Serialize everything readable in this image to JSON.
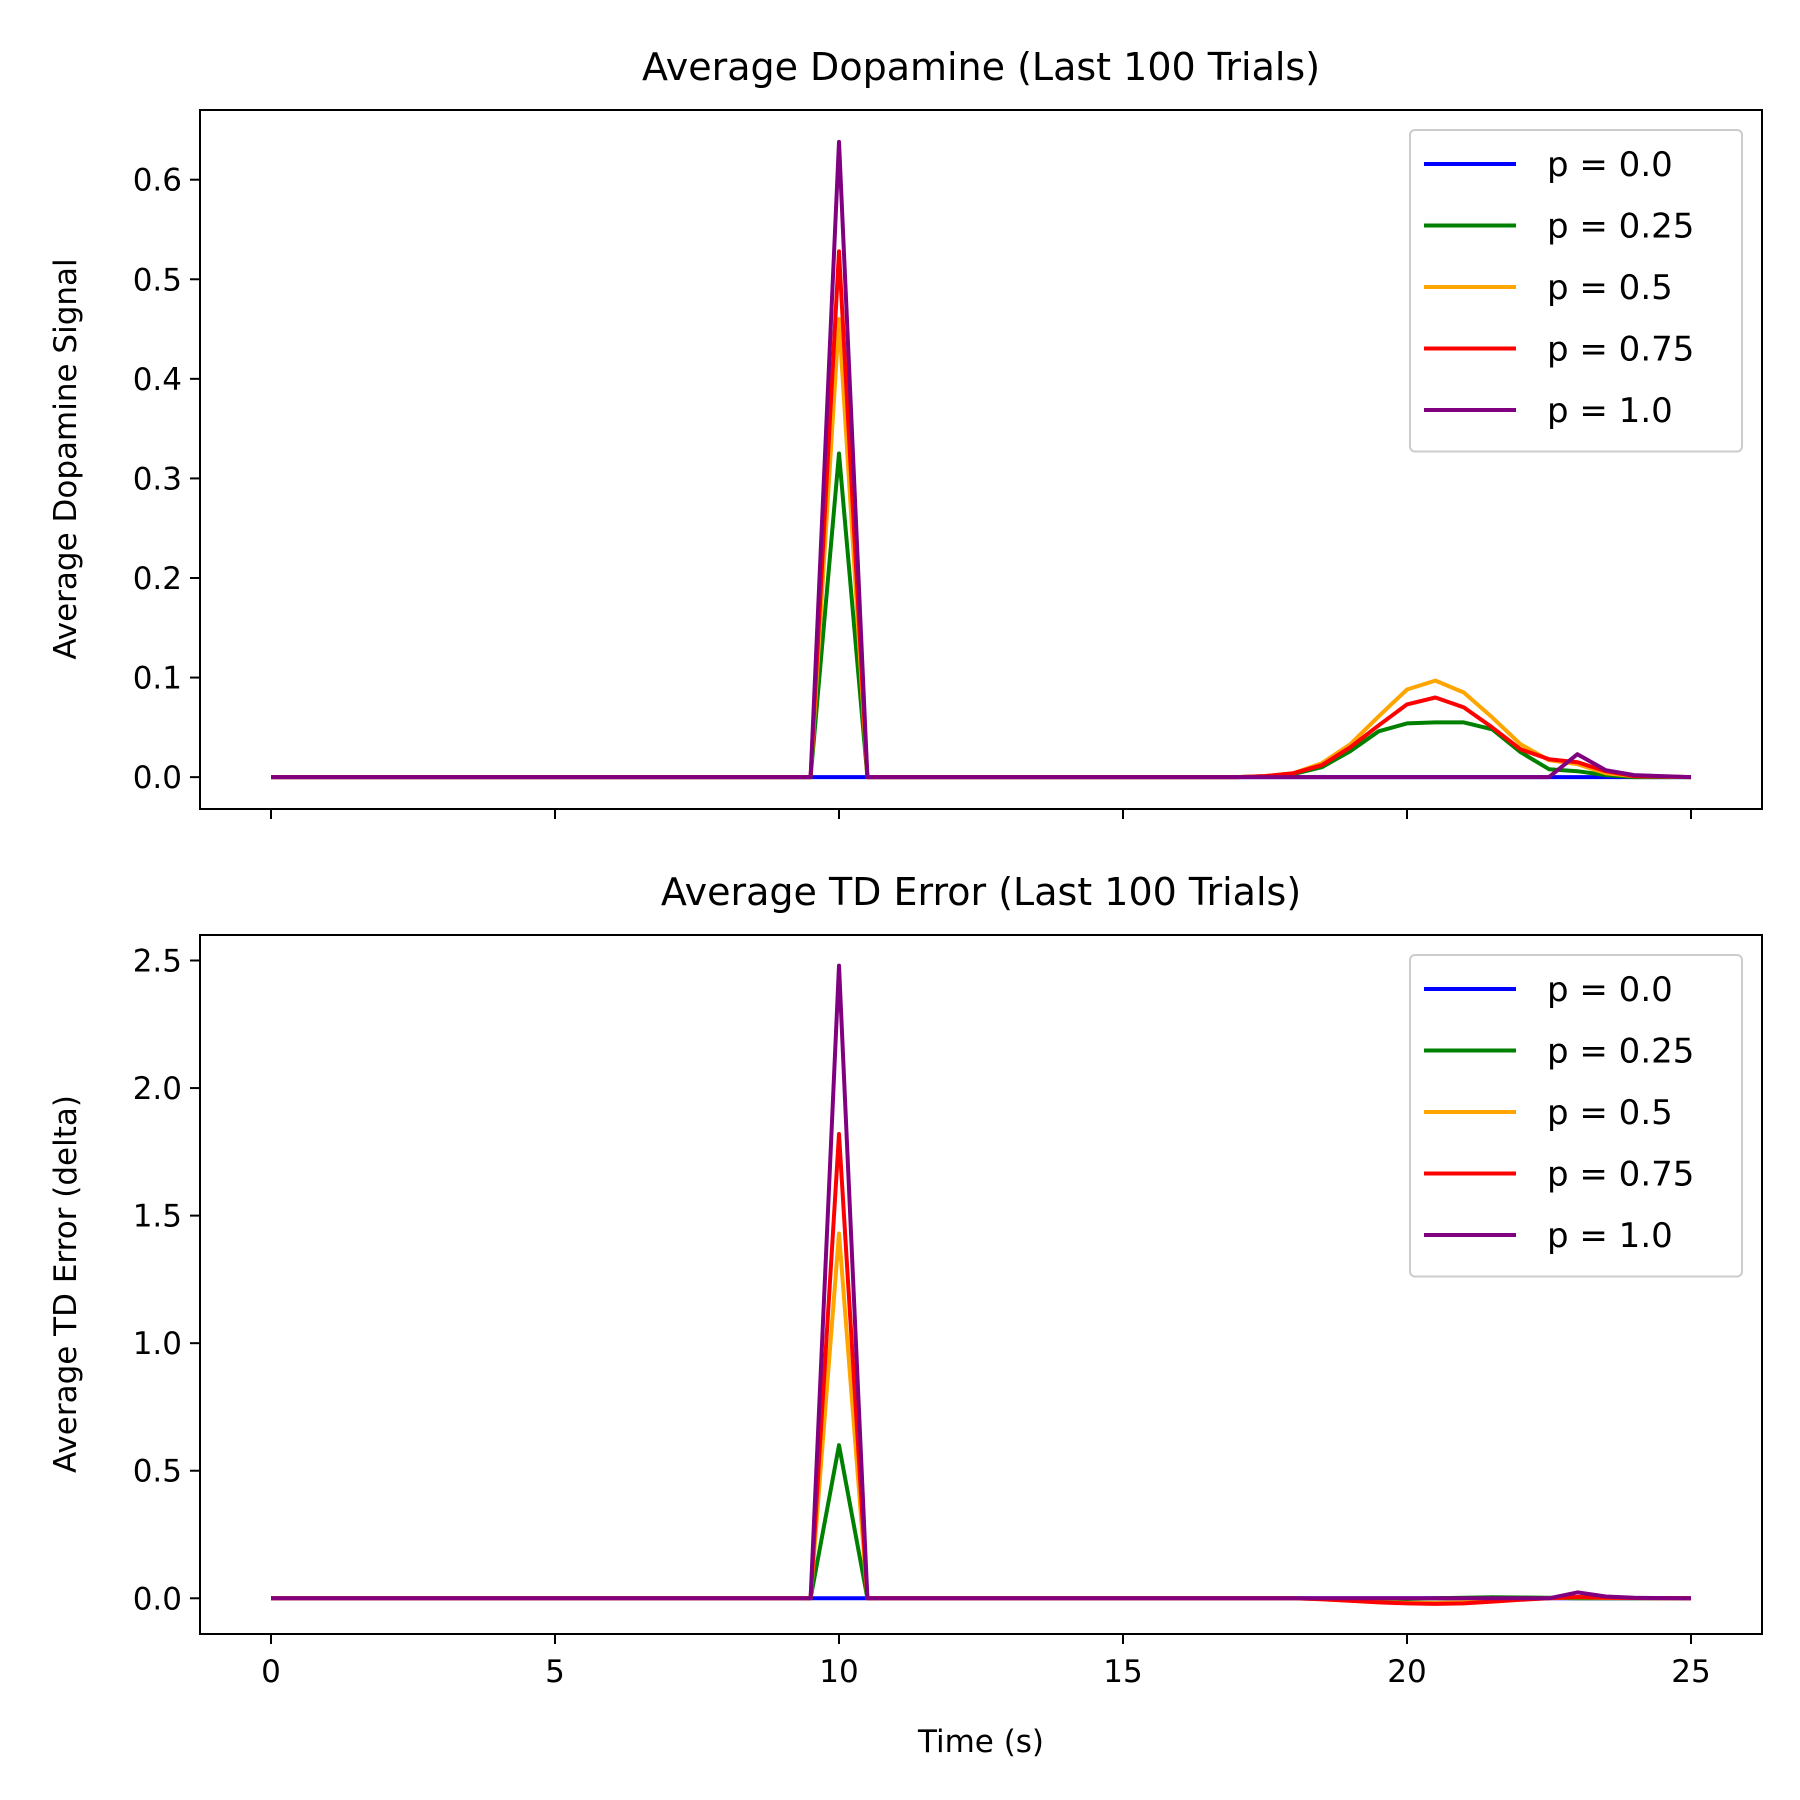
{
  "chart_data": [
    {
      "type": "line",
      "title": "Average Dopamine (Last 100 Trials)",
      "xlabel": "",
      "ylabel": "Average Dopamine Signal",
      "xlim": [
        -1.25,
        26.25
      ],
      "ylim": [
        -0.032,
        0.67
      ],
      "xticks": [
        0,
        5,
        10,
        15,
        20,
        25
      ],
      "xtick_labels_visible": false,
      "yticks": [
        0.0,
        0.1,
        0.2,
        0.3,
        0.4,
        0.5,
        0.6
      ],
      "ytick_labels": [
        "0.0",
        "0.1",
        "0.2",
        "0.3",
        "0.4",
        "0.5",
        "0.6"
      ],
      "grid": false,
      "legend": "top-right",
      "series": [
        {
          "name": "p = 0.0",
          "color": "#0000ff",
          "points": [
            [
              0,
              0
            ],
            [
              9.5,
              0
            ],
            [
              10,
              0
            ],
            [
              10.5,
              0
            ],
            [
              22.5,
              0
            ],
            [
              23,
              0
            ],
            [
              25,
              0
            ]
          ]
        },
        {
          "name": "p = 0.25",
          "color": "#008000",
          "points": [
            [
              0,
              0
            ],
            [
              9.5,
              0
            ],
            [
              10,
              0.325
            ],
            [
              10.5,
              0
            ],
            [
              17,
              0
            ],
            [
              17.5,
              0.001
            ],
            [
              18,
              0.003
            ],
            [
              18.5,
              0.01
            ],
            [
              19,
              0.026
            ],
            [
              19.5,
              0.046
            ],
            [
              20,
              0.054
            ],
            [
              20.5,
              0.055
            ],
            [
              21,
              0.055
            ],
            [
              21.5,
              0.048
            ],
            [
              22,
              0.025
            ],
            [
              22.5,
              0.008
            ],
            [
              23,
              0.006
            ],
            [
              23.5,
              0.002
            ],
            [
              24,
              0
            ],
            [
              25,
              0
            ]
          ]
        },
        {
          "name": "p = 0.5",
          "color": "#ffa500",
          "points": [
            [
              0,
              0
            ],
            [
              9.5,
              0
            ],
            [
              10,
              0.46
            ],
            [
              10.5,
              0
            ],
            [
              17,
              0
            ],
            [
              17.5,
              0.001
            ],
            [
              18,
              0.004
            ],
            [
              18.5,
              0.014
            ],
            [
              19,
              0.033
            ],
            [
              19.5,
              0.061
            ],
            [
              20,
              0.088
            ],
            [
              20.5,
              0.097
            ],
            [
              21,
              0.085
            ],
            [
              21.5,
              0.06
            ],
            [
              22,
              0.033
            ],
            [
              22.5,
              0.017
            ],
            [
              23,
              0.013
            ],
            [
              23.5,
              0.004
            ],
            [
              24,
              0.001
            ],
            [
              25,
              0
            ]
          ]
        },
        {
          "name": "p = 0.75",
          "color": "#ff0000",
          "points": [
            [
              0,
              0
            ],
            [
              9.5,
              0
            ],
            [
              10,
              0.528
            ],
            [
              10.5,
              0
            ],
            [
              17,
              0
            ],
            [
              17.5,
              0.001
            ],
            [
              18,
              0.004
            ],
            [
              18.5,
              0.012
            ],
            [
              19,
              0.03
            ],
            [
              19.5,
              0.052
            ],
            [
              20,
              0.073
            ],
            [
              20.5,
              0.08
            ],
            [
              21,
              0.07
            ],
            [
              21.5,
              0.05
            ],
            [
              22,
              0.028
            ],
            [
              22.5,
              0.018
            ],
            [
              23,
              0.015
            ],
            [
              23.5,
              0.006
            ],
            [
              24,
              0.001
            ],
            [
              25,
              0
            ]
          ]
        },
        {
          "name": "p = 1.0",
          "color": "#800080",
          "points": [
            [
              0,
              0
            ],
            [
              9.5,
              0
            ],
            [
              10,
              0.638
            ],
            [
              10.5,
              0
            ],
            [
              17,
              0
            ],
            [
              22.5,
              0
            ],
            [
              23,
              0.023
            ],
            [
              23.5,
              0.007
            ],
            [
              24,
              0.002
            ],
            [
              25,
              0
            ]
          ]
        }
      ]
    },
    {
      "type": "line",
      "title": "Average TD Error (Last 100 Trials)",
      "xlabel": "Time (s)",
      "ylabel": "Average TD Error (delta)",
      "xlim": [
        -1.25,
        26.25
      ],
      "ylim": [
        -0.14,
        2.6
      ],
      "xticks": [
        0,
        5,
        10,
        15,
        20,
        25
      ],
      "xtick_labels": [
        "0",
        "5",
        "10",
        "15",
        "20",
        "25"
      ],
      "xtick_labels_visible": true,
      "yticks": [
        0.0,
        0.5,
        1.0,
        1.5,
        2.0,
        2.5
      ],
      "ytick_labels": [
        "0.0",
        "0.5",
        "1.0",
        "1.5",
        "2.0",
        "2.5"
      ],
      "grid": false,
      "legend": "top-right",
      "series": [
        {
          "name": "p = 0.0",
          "color": "#0000ff",
          "points": [
            [
              0,
              0
            ],
            [
              9.5,
              0
            ],
            [
              10,
              0
            ],
            [
              10.5,
              0
            ],
            [
              25,
              0
            ]
          ]
        },
        {
          "name": "p = 0.25",
          "color": "#008000",
          "points": [
            [
              0,
              0
            ],
            [
              9.5,
              0
            ],
            [
              10,
              0.6
            ],
            [
              10.5,
              0
            ],
            [
              18,
              0
            ],
            [
              19,
              -0.003
            ],
            [
              20,
              -0.003
            ],
            [
              20.5,
              0
            ],
            [
              21,
              0.002
            ],
            [
              21.5,
              0.004
            ],
            [
              22,
              0.003
            ],
            [
              22.5,
              0.002
            ],
            [
              23,
              0
            ],
            [
              23.5,
              0
            ],
            [
              25,
              0
            ]
          ]
        },
        {
          "name": "p = 0.5",
          "color": "#ffa500",
          "points": [
            [
              0,
              0
            ],
            [
              9.5,
              0
            ],
            [
              10,
              1.43
            ],
            [
              10.5,
              0
            ],
            [
              18,
              0
            ],
            [
              18.5,
              -0.004
            ],
            [
              19,
              -0.01
            ],
            [
              19.5,
              -0.015
            ],
            [
              20,
              -0.018
            ],
            [
              20.5,
              -0.018
            ],
            [
              21,
              -0.015
            ],
            [
              21.5,
              -0.01
            ],
            [
              22,
              -0.004
            ],
            [
              22.5,
              0
            ],
            [
              23,
              0.004
            ],
            [
              23.5,
              0.001
            ],
            [
              25,
              0
            ]
          ]
        },
        {
          "name": "p = 0.75",
          "color": "#ff0000",
          "points": [
            [
              0,
              0
            ],
            [
              9.5,
              0
            ],
            [
              10,
              1.82
            ],
            [
              10.5,
              0
            ],
            [
              18,
              0
            ],
            [
              18.5,
              -0.004
            ],
            [
              19,
              -0.01
            ],
            [
              19.5,
              -0.016
            ],
            [
              20,
              -0.02
            ],
            [
              20.5,
              -0.022
            ],
            [
              21,
              -0.02
            ],
            [
              21.5,
              -0.013
            ],
            [
              22,
              -0.006
            ],
            [
              22.5,
              0
            ],
            [
              23,
              0.005
            ],
            [
              23.5,
              0.002
            ],
            [
              25,
              0
            ]
          ]
        },
        {
          "name": "p = 1.0",
          "color": "#800080",
          "points": [
            [
              0,
              0
            ],
            [
              9.5,
              0
            ],
            [
              10,
              2.48
            ],
            [
              10.5,
              0
            ],
            [
              22.5,
              0
            ],
            [
              23,
              0.023
            ],
            [
              23.5,
              0.007
            ],
            [
              24,
              0.002
            ],
            [
              25,
              0
            ]
          ]
        }
      ]
    }
  ]
}
